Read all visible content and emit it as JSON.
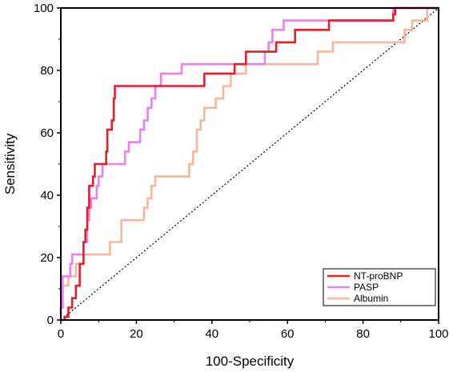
{
  "chart_data": {
    "type": "line",
    "xlabel": "100-Specificity",
    "ylabel": "Sensitivity",
    "xlim": [
      0,
      100
    ],
    "ylim": [
      0,
      100
    ],
    "x_ticks": [
      0,
      20,
      40,
      60,
      80,
      100
    ],
    "y_ticks": [
      0,
      20,
      40,
      60,
      80,
      100
    ],
    "grid": false,
    "legend_position": "bottom-right",
    "reference_line": {
      "from": [
        0,
        0
      ],
      "to": [
        100,
        100
      ],
      "style": "dotted",
      "color": "#000000"
    },
    "series": [
      {
        "name": "NT-proBNP",
        "color": "#e0202a",
        "points": [
          [
            0,
            0
          ],
          [
            1,
            0
          ],
          [
            1,
            1
          ],
          [
            2,
            1
          ],
          [
            2,
            4
          ],
          [
            3,
            4
          ],
          [
            3,
            7
          ],
          [
            4,
            7
          ],
          [
            4,
            11
          ],
          [
            5,
            11
          ],
          [
            5,
            18
          ],
          [
            6,
            18
          ],
          [
            6,
            25
          ],
          [
            6.5,
            25
          ],
          [
            6.5,
            29
          ],
          [
            7,
            29
          ],
          [
            7,
            36
          ],
          [
            7.5,
            36
          ],
          [
            7.5,
            43
          ],
          [
            8.5,
            43
          ],
          [
            8.5,
            46
          ],
          [
            9,
            46
          ],
          [
            9,
            50
          ],
          [
            12,
            50
          ],
          [
            12,
            54
          ],
          [
            12.3,
            54
          ],
          [
            12.3,
            61
          ],
          [
            13.5,
            61
          ],
          [
            13.5,
            64
          ],
          [
            14,
            64
          ],
          [
            14,
            71
          ],
          [
            14.3,
            71
          ],
          [
            14.3,
            75
          ],
          [
            38,
            75
          ],
          [
            38,
            79
          ],
          [
            46,
            79
          ],
          [
            46,
            82
          ],
          [
            49,
            82
          ],
          [
            49,
            86
          ],
          [
            57,
            86
          ],
          [
            57,
            89
          ],
          [
            62,
            89
          ],
          [
            62,
            93
          ],
          [
            71,
            93
          ],
          [
            71,
            96
          ],
          [
            88,
            96
          ],
          [
            88,
            98
          ],
          [
            88.5,
            98
          ],
          [
            88.5,
            100
          ],
          [
            100,
            100
          ]
        ]
      },
      {
        "name": "PASP",
        "color": "#ee80ee",
        "points": [
          [
            0,
            0
          ],
          [
            0,
            4
          ],
          [
            0.5,
            4
          ],
          [
            0.5,
            14
          ],
          [
            2.5,
            14
          ],
          [
            2.5,
            18
          ],
          [
            3,
            18
          ],
          [
            3,
            21
          ],
          [
            6,
            21
          ],
          [
            6,
            25
          ],
          [
            7,
            25
          ],
          [
            7,
            32
          ],
          [
            7.5,
            32
          ],
          [
            7.5,
            36
          ],
          [
            8,
            36
          ],
          [
            8,
            39
          ],
          [
            9.5,
            39
          ],
          [
            9.5,
            43
          ],
          [
            10,
            43
          ],
          [
            10,
            46
          ],
          [
            11,
            46
          ],
          [
            11,
            50
          ],
          [
            17,
            50
          ],
          [
            17,
            54
          ],
          [
            18,
            54
          ],
          [
            18,
            57
          ],
          [
            21,
            57
          ],
          [
            21,
            61
          ],
          [
            22,
            61
          ],
          [
            22,
            64
          ],
          [
            23,
            64
          ],
          [
            23,
            68
          ],
          [
            24,
            68
          ],
          [
            24,
            71
          ],
          [
            25,
            71
          ],
          [
            25,
            75
          ],
          [
            26.5,
            75
          ],
          [
            26.5,
            79
          ],
          [
            32,
            79
          ],
          [
            32,
            82
          ],
          [
            54,
            82
          ],
          [
            54,
            86
          ],
          [
            55,
            86
          ],
          [
            55,
            89
          ],
          [
            56,
            89
          ],
          [
            56,
            93
          ],
          [
            59,
            93
          ],
          [
            59,
            96
          ],
          [
            88,
            96
          ],
          [
            88,
            100
          ],
          [
            100,
            100
          ]
        ]
      },
      {
        "name": "Albumin",
        "color": "#f5b89c",
        "points": [
          [
            0,
            0
          ],
          [
            0,
            4
          ],
          [
            0.5,
            4
          ],
          [
            0.5,
            11
          ],
          [
            2,
            11
          ],
          [
            2,
            14
          ],
          [
            4,
            14
          ],
          [
            4,
            18
          ],
          [
            6,
            18
          ],
          [
            6,
            21
          ],
          [
            13,
            21
          ],
          [
            13,
            25
          ],
          [
            16,
            25
          ],
          [
            16,
            32
          ],
          [
            22,
            32
          ],
          [
            22,
            36
          ],
          [
            23,
            36
          ],
          [
            23,
            39
          ],
          [
            24,
            39
          ],
          [
            24,
            43
          ],
          [
            25,
            43
          ],
          [
            25,
            46
          ],
          [
            34,
            46
          ],
          [
            34,
            50
          ],
          [
            35,
            50
          ],
          [
            35,
            54
          ],
          [
            36,
            54
          ],
          [
            36,
            61
          ],
          [
            37,
            61
          ],
          [
            37,
            64
          ],
          [
            38,
            64
          ],
          [
            38,
            68
          ],
          [
            41,
            68
          ],
          [
            41,
            71
          ],
          [
            43,
            71
          ],
          [
            43,
            75
          ],
          [
            45,
            75
          ],
          [
            45,
            79
          ],
          [
            49,
            79
          ],
          [
            49,
            82
          ],
          [
            68,
            82
          ],
          [
            68,
            86
          ],
          [
            72,
            86
          ],
          [
            72,
            89
          ],
          [
            91,
            89
          ],
          [
            91,
            93
          ],
          [
            93,
            93
          ],
          [
            93,
            96
          ],
          [
            97,
            96
          ],
          [
            97,
            100
          ],
          [
            100,
            100
          ]
        ]
      }
    ]
  }
}
